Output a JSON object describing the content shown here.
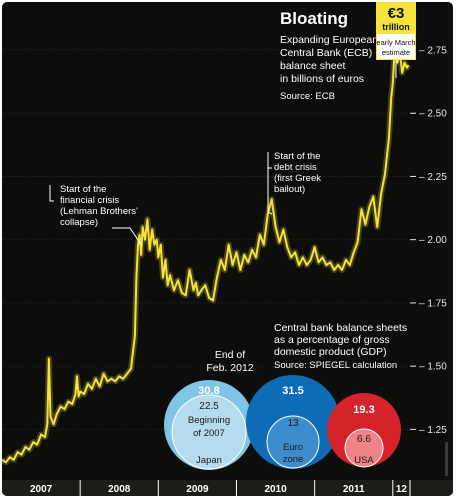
{
  "chart_data": {
    "type": "line",
    "title": "Bloating",
    "subtitle": "Expanding European Central Bank (ECB) balance sheet in billions of euros",
    "subtitle_lines": [
      "Expanding European",
      "Central Bank (ECB)",
      "balance sheet",
      "in billions of euros"
    ],
    "source": "Source: ECB",
    "color": "#f5e33a",
    "y_ticks": [
      "1.25",
      "1.50",
      "1.75",
      "2.00",
      "2.25",
      "2.50",
      "2.75"
    ],
    "ylim": [
      1.05,
      2.9
    ],
    "x_labels": [
      "2007",
      "2008",
      "2009",
      "2010",
      "2011",
      "12"
    ],
    "xlim": [
      2007.0,
      2012.22
    ],
    "series": [
      {
        "x": [
          2007.0,
          2007.05,
          2007.1,
          2007.15,
          2007.2,
          2007.25,
          2007.3,
          2007.35,
          2007.4,
          2007.45,
          2007.5,
          2007.55,
          2007.58,
          2007.6,
          2007.62,
          2007.66,
          2007.7,
          2007.75,
          2007.8,
          2007.85,
          2007.9,
          2007.94,
          2007.96,
          2007.98,
          2008.0,
          2008.05,
          2008.1,
          2008.15,
          2008.2,
          2008.25,
          2008.3,
          2008.35,
          2008.4,
          2008.45,
          2008.5,
          2008.55,
          2008.6,
          2008.65,
          2008.7,
          2008.72,
          2008.74,
          2008.76,
          2008.78,
          2008.8,
          2008.83,
          2008.86,
          2008.89,
          2008.92,
          2008.95,
          2008.98,
          2009.0,
          2009.03,
          2009.06,
          2009.09,
          2009.12,
          2009.15,
          2009.2,
          2009.25,
          2009.3,
          2009.35,
          2009.4,
          2009.45,
          2009.48,
          2009.51,
          2009.55,
          2009.6,
          2009.65,
          2009.7,
          2009.75,
          2009.8,
          2009.85,
          2009.9,
          2009.95,
          2010.0,
          2010.05,
          2010.1,
          2010.15,
          2010.2,
          2010.25,
          2010.3,
          2010.35,
          2010.4,
          2010.45,
          2010.5,
          2010.55,
          2010.6,
          2010.65,
          2010.7,
          2010.75,
          2010.8,
          2010.85,
          2010.9,
          2010.95,
          2011.0,
          2011.05,
          2011.1,
          2011.15,
          2011.2,
          2011.25,
          2011.3,
          2011.35,
          2011.4,
          2011.45,
          2011.5,
          2011.55,
          2011.6,
          2011.65,
          2011.7,
          2011.75,
          2011.8,
          2011.85,
          2011.9,
          2011.95,
          2011.98,
          2012.0,
          2012.03,
          2012.06,
          2012.09,
          2012.12,
          2012.15,
          2012.18,
          2012.2
        ],
        "values": [
          1.13,
          1.12,
          1.14,
          1.13,
          1.16,
          1.15,
          1.18,
          1.17,
          1.2,
          1.19,
          1.23,
          1.22,
          1.27,
          1.53,
          1.3,
          1.27,
          1.31,
          1.34,
          1.33,
          1.36,
          1.35,
          1.39,
          1.46,
          1.38,
          1.4,
          1.39,
          1.43,
          1.41,
          1.45,
          1.42,
          1.47,
          1.44,
          1.45,
          1.44,
          1.46,
          1.45,
          1.47,
          1.49,
          1.62,
          1.85,
          1.98,
          2.02,
          1.94,
          2.05,
          2.0,
          2.08,
          1.96,
          2.04,
          1.98,
          2.0,
          1.93,
          1.98,
          1.85,
          1.92,
          1.82,
          1.86,
          1.8,
          1.84,
          1.79,
          1.78,
          1.88,
          1.8,
          1.83,
          1.78,
          1.8,
          1.82,
          1.77,
          1.76,
          1.85,
          1.92,
          1.88,
          1.98,
          1.9,
          1.95,
          1.88,
          1.94,
          1.91,
          1.96,
          1.93,
          2.02,
          1.98,
          2.1,
          2.16,
          2.05,
          1.99,
          2.04,
          1.97,
          1.93,
          1.95,
          1.9,
          1.93,
          1.9,
          1.92,
          1.97,
          1.91,
          1.93,
          1.9,
          1.91,
          1.88,
          1.9,
          1.88,
          1.92,
          1.9,
          1.95,
          1.99,
          2.12,
          2.06,
          2.13,
          2.17,
          2.05,
          2.18,
          2.26,
          2.4,
          2.56,
          2.62,
          2.78,
          2.7,
          2.74,
          2.66,
          2.7,
          2.68,
          2.69
        ]
      }
    ],
    "annotations": [
      {
        "lines": [
          "Start of the",
          "financial crisis",
          "(Lehman Brothers'",
          "collapse)"
        ]
      },
      {
        "lines": [
          "Start of the",
          "debt crisis",
          "(first Greek",
          "bailout)"
        ]
      }
    ],
    "callout": {
      "value": "€3",
      "unit": "trillion",
      "note_lines": [
        "early March",
        "estimate"
      ]
    },
    "inset": {
      "title_lines": [
        "Central bank balance sheets",
        "as a percentage of gross",
        "domestic product (GDP)"
      ],
      "source": "Source: SPIEGEL calculation",
      "date_lines": [
        "End of",
        "Feb. 2012"
      ],
      "bubbles": [
        {
          "name": "Japan",
          "value_2012": 30.8,
          "value_2007": 22.5,
          "label_2007_lines": [
            "Beginning",
            "of 2007"
          ],
          "color_outer": "#7ec5e6",
          "color_inner": "#b5dcee"
        },
        {
          "name_lines": [
            "Euro",
            "zone"
          ],
          "value_2012": 31.5,
          "value_2007": 13.0,
          "color_outer": "#0d6cb5",
          "color_inner": "#3d8ccb"
        },
        {
          "name": "USA",
          "value_2012": 19.3,
          "value_2007": 6.6,
          "color_outer": "#d4232a",
          "color_inner": "#f08589"
        }
      ]
    }
  }
}
